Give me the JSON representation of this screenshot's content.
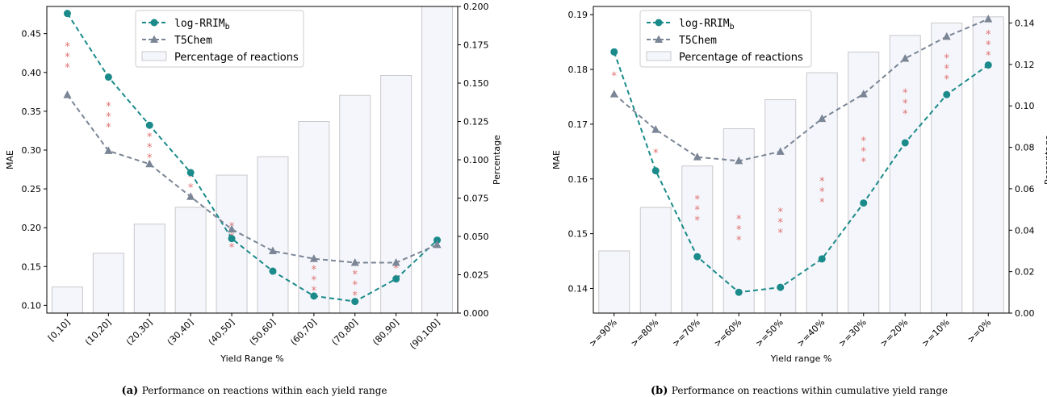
{
  "chart_data": [
    {
      "type": "bar+line",
      "caption_label": "(a)",
      "caption": "Performance on reactions within each yield range",
      "xlabel": "Yield Range %",
      "ylabel": "MAE",
      "y2label": "Percentage",
      "categories": [
        "[0,10]",
        "(10,20]",
        "(20,30]",
        "(30,40]",
        "(40,50]",
        "(50,60]",
        "(60,70]",
        "(70,80]",
        "(80,90]",
        "(90,100]"
      ],
      "ylim": [
        0.09,
        0.485
      ],
      "yticks": [
        0.1,
        0.15,
        0.2,
        0.25,
        0.3,
        0.35,
        0.4,
        0.45
      ],
      "y2lim": [
        0,
        0.2
      ],
      "y2ticks": [
        0.0,
        0.025,
        0.05,
        0.075,
        0.1,
        0.125,
        0.15,
        0.175,
        0.2
      ],
      "legend": {
        "position": "top-center",
        "rrim": "log-RRIM",
        "rrim_sub": "b",
        "t5": "T5Chem",
        "bars": "Percentage of reactions"
      },
      "bars": {
        "name": "Percentage of reactions",
        "values": [
          0.017,
          0.039,
          0.058,
          0.069,
          0.09,
          0.102,
          0.125,
          0.142,
          0.155,
          0.2
        ]
      },
      "series": [
        {
          "name": "log-RRIM_b",
          "color": "#1a8a8a",
          "marker": "circle",
          "values": [
            0.476,
            0.394,
            0.332,
            0.271,
            0.186,
            0.144,
            0.112,
            0.105,
            0.134,
            0.184
          ]
        },
        {
          "name": "T5Chem",
          "color": "#7a8595",
          "marker": "triangle",
          "values": [
            0.371,
            0.299,
            0.282,
            0.24,
            0.198,
            0.17,
            0.16,
            0.155,
            0.155,
            0.178
          ]
        }
      ],
      "significance": [
        "***",
        "***",
        "***",
        "***",
        "***",
        "",
        "***",
        "***",
        "**",
        ""
      ]
    },
    {
      "type": "bar+line",
      "caption_label": "(b)",
      "caption": "Performance on reactions within cumulative yield range",
      "xlabel": "Yield range %",
      "ylabel": "MAE",
      "y2label": "Percentage",
      "categories": [
        ">=90%",
        ">=80%",
        ">=70%",
        ">=60%",
        ">=50%",
        ">=40%",
        ">=30%",
        ">=20%",
        ">=10%",
        ">=0%"
      ],
      "ylim": [
        0.1355,
        0.1915
      ],
      "yticks": [
        0.14,
        0.15,
        0.16,
        0.17,
        0.18,
        0.19
      ],
      "y2lim": [
        0,
        0.148
      ],
      "y2ticks": [
        0.0,
        0.02,
        0.04,
        0.06,
        0.08,
        0.1,
        0.12,
        0.14
      ],
      "legend": {
        "position": "top-left",
        "rrim": "log-RRIM",
        "rrim_sub": "b",
        "t5": "T5Chem",
        "bars": "Percentage of reactions"
      },
      "bars": {
        "name": "Percentage of reactions",
        "values": [
          0.03,
          0.051,
          0.071,
          0.089,
          0.103,
          0.116,
          0.126,
          0.134,
          0.14,
          0.143
        ]
      },
      "series": [
        {
          "name": "log-RRIM_b",
          "color": "#1a8a8a",
          "marker": "circle",
          "values": [
            0.1832,
            0.1615,
            0.1458,
            0.1393,
            0.1402,
            0.1454,
            0.1556,
            0.1666,
            0.1754,
            0.1808
          ]
        },
        {
          "name": "T5Chem",
          "color": "#7a8595",
          "marker": "triangle",
          "values": [
            0.1755,
            0.169,
            0.164,
            0.1633,
            0.165,
            0.171,
            0.1755,
            0.182,
            0.186,
            0.1892
          ]
        }
      ],
      "significance": [
        "*",
        "*",
        "***",
        "***",
        "***",
        "***",
        "***",
        "***",
        "***",
        "***"
      ]
    }
  ]
}
